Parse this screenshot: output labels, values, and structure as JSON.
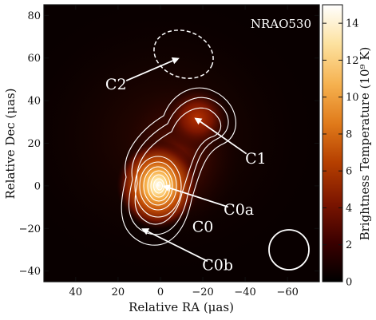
{
  "chart_data": {
    "type": "heatmap",
    "title": "NRAO530",
    "xlabel": "Relative RA (μas)",
    "ylabel": "Relative Dec (μas)",
    "xlim": [
      55,
      -75
    ],
    "ylim": [
      -45,
      85
    ],
    "x_ticks": [
      40,
      20,
      0,
      -20,
      -40,
      -60
    ],
    "x_tick_labels": [
      "40",
      "20",
      "0",
      "−20",
      "−40",
      "−60"
    ],
    "y_ticks": [
      -40,
      -20,
      0,
      20,
      40,
      60,
      80
    ],
    "y_tick_labels": [
      "−40",
      "−20",
      "0",
      "20",
      "40",
      "60",
      "80"
    ],
    "colorbar": {
      "label": "Brightness Temperature (10⁹ K)",
      "range": [
        0,
        15
      ],
      "ticks": [
        0,
        2,
        4,
        6,
        8,
        10,
        12,
        14
      ],
      "tick_labels": [
        "0",
        "2",
        "4",
        "6",
        "8",
        "10",
        "12",
        "14"
      ],
      "colormap": [
        "#000000",
        "#3a0000",
        "#7a1400",
        "#b53f00",
        "#e07a1a",
        "#f5b04e",
        "#fde2a0",
        "#ffffff"
      ]
    },
    "components": [
      {
        "name": "C0a",
        "x": 0,
        "y": 0,
        "peak_tb": 15
      },
      {
        "name": "C0",
        "x": 3,
        "y": -6,
        "peak_tb": 4
      },
      {
        "name": "C0b",
        "x": 7,
        "y": -20,
        "peak_tb": 1
      },
      {
        "name": "C1",
        "x": -15,
        "y": 31,
        "peak_tb": 3
      },
      {
        "name": "C2",
        "x": -10,
        "y": 60,
        "peak_tb": 0
      }
    ],
    "annotations": [
      {
        "label": "C2",
        "x": 21,
        "y": 48,
        "arrow_to_x": -9,
        "arrow_to_y": 60
      },
      {
        "label": "C1",
        "x": -45,
        "y": 13,
        "arrow_to_x": -16,
        "arrow_to_y": 32
      },
      {
        "label": "C0a",
        "x": -37,
        "y": -11,
        "arrow_to_x": -1,
        "arrow_to_y": 0
      },
      {
        "label": "C0",
        "x": -20,
        "y": -19,
        "arrow_to_x": null,
        "arrow_to_y": null
      },
      {
        "label": "C0b",
        "x": -27,
        "y": -37,
        "arrow_to_x": 9,
        "arrow_to_y": -20
      }
    ],
    "beam": {
      "x": -59,
      "y": -29,
      "major": 19,
      "minor": 19
    }
  }
}
